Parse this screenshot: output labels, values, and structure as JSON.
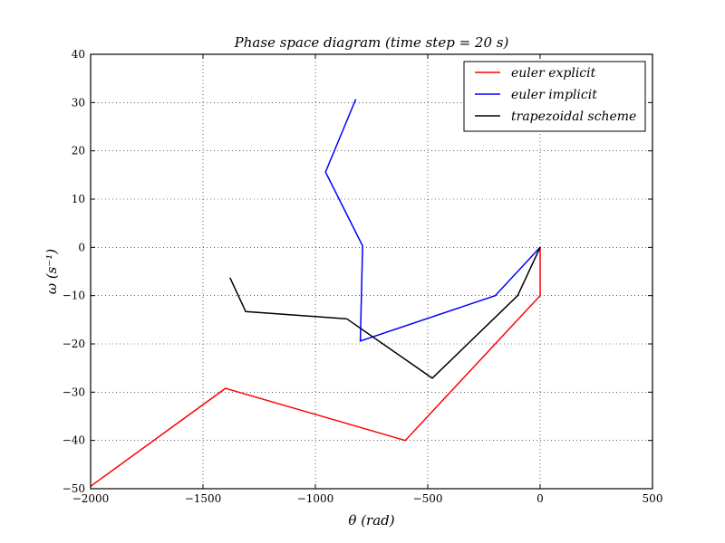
{
  "chart_data": {
    "type": "line",
    "title": "Phase space diagram (time step = 20 s)",
    "xlabel": "θ (rad)",
    "ylabel": "ω (s⁻¹)",
    "xlim": [
      -2000,
      500
    ],
    "ylim": [
      -50,
      40
    ],
    "xticks": [
      -2000,
      -1500,
      -1000,
      -500,
      0,
      500
    ],
    "yticks": [
      -50,
      -40,
      -30,
      -20,
      -10,
      0,
      10,
      20,
      30,
      40
    ],
    "xtick_labels": [
      "−2000",
      "−1500",
      "−1000",
      "−500",
      "0",
      "500"
    ],
    "ytick_labels": [
      "−50",
      "−40",
      "−30",
      "−20",
      "−10",
      "0",
      "10",
      "20",
      "30",
      "40"
    ],
    "grid": true,
    "legend_position": "top-right",
    "series": [
      {
        "name": "euler explicit",
        "color": "#ff0000",
        "points": [
          [
            0,
            0
          ],
          [
            0,
            -10
          ],
          [
            -600,
            -40
          ],
          [
            -1400,
            -29.2
          ],
          [
            -2000,
            -49.5
          ]
        ]
      },
      {
        "name": "euler implicit",
        "color": "#0000ff",
        "points": [
          [
            0,
            0
          ],
          [
            -200,
            -10
          ],
          [
            -800,
            -19.4
          ],
          [
            -790,
            0.3
          ],
          [
            -955,
            15.6
          ],
          [
            -820,
            30.7
          ]
        ]
      },
      {
        "name": "trapezoidal scheme",
        "color": "#000000",
        "points": [
          [
            0,
            0
          ],
          [
            -100,
            -10
          ],
          [
            -480,
            -27.1
          ],
          [
            -860,
            -14.8
          ],
          [
            -1310,
            -13.3
          ],
          [
            -1380,
            -6.3
          ]
        ]
      }
    ]
  }
}
